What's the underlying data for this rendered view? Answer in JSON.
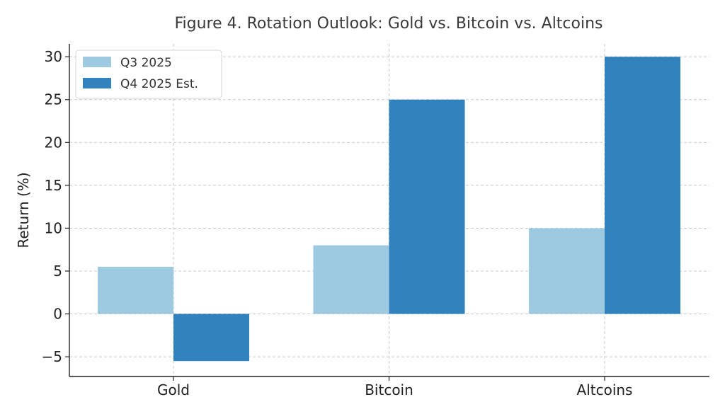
{
  "chart_data": {
    "type": "bar",
    "title": "Figure 4. Rotation Outlook: Gold vs. Bitcoin vs. Altcoins",
    "xlabel": "",
    "ylabel": "Return (%)",
    "categories": [
      "Gold",
      "Bitcoin",
      "Altcoins"
    ],
    "series": [
      {
        "name": "Q3 2025",
        "values": [
          5.5,
          8,
          10
        ],
        "color": "#9ecae1"
      },
      {
        "name": "Q4 2025 Est.",
        "values": [
          -5.5,
          25,
          30
        ],
        "color": "#3182bd"
      }
    ],
    "ylim": [
      -7.3,
      31.5
    ],
    "yticks": [
      -5,
      0,
      5,
      10,
      15,
      20,
      25,
      30
    ],
    "ytick_labels": [
      "−5",
      "0",
      "5",
      "10",
      "15",
      "20",
      "25",
      "30"
    ],
    "grid": true,
    "legend_position": "top-left"
  }
}
